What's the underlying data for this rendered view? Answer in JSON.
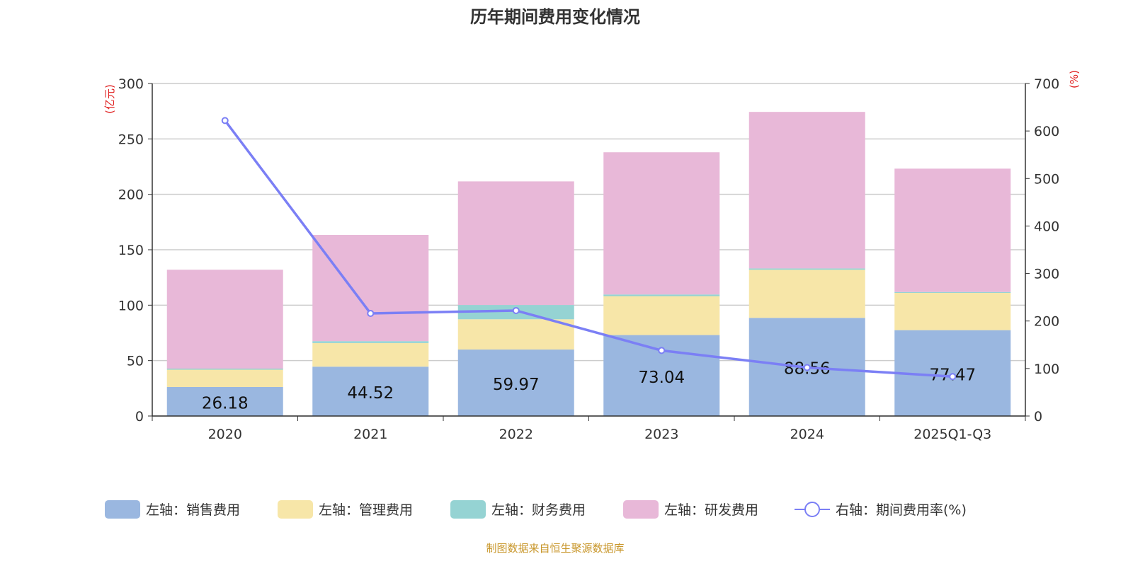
{
  "chart_data": {
    "type": "bar",
    "stacked": true,
    "title": "历年期间费用变化情况",
    "source_note": "制图数据来自恒生聚源数据库",
    "categories": [
      "2020",
      "2021",
      "2022",
      "2023",
      "2024",
      "2025Q1-Q3"
    ],
    "left_axis": {
      "unit": "(亿元)",
      "ylim": [
        0,
        300
      ],
      "ticks": [
        0,
        50,
        100,
        150,
        200,
        250,
        300
      ]
    },
    "right_axis": {
      "unit": "(%)",
      "ylim": [
        0,
        700
      ],
      "ticks": [
        0,
        100,
        200,
        300,
        400,
        500,
        600,
        700
      ]
    },
    "grid": true,
    "legend_position": "bottom",
    "series": [
      {
        "name": "左轴：销售费用",
        "axis": "left",
        "type": "bar",
        "color": "#9ab7e0",
        "values": [
          26.18,
          44.52,
          59.97,
          73.04,
          88.56,
          77.47
        ],
        "show_labels": true
      },
      {
        "name": "左轴：管理费用",
        "axis": "left",
        "type": "bar",
        "color": "#f7e6a8",
        "values": [
          15.6,
          21.3,
          27.3,
          35.1,
          43.4,
          33.6
        ]
      },
      {
        "name": "左轴：财务费用",
        "axis": "left",
        "type": "bar",
        "color": "#95d3d3",
        "values": [
          1.0,
          1.7,
          12.9,
          1.5,
          1.2,
          0.8
        ]
      },
      {
        "name": "左轴：研发费用",
        "axis": "left",
        "type": "bar",
        "color": "#e8b8d8",
        "values": [
          89.2,
          95.9,
          111.5,
          128.3,
          141.2,
          111.3
        ]
      },
      {
        "name": "右轴：期间费用率(%)",
        "axis": "right",
        "type": "line",
        "color": "#7b7ff5",
        "values": [
          622,
          216,
          222,
          138,
          102,
          83
        ]
      }
    ]
  }
}
